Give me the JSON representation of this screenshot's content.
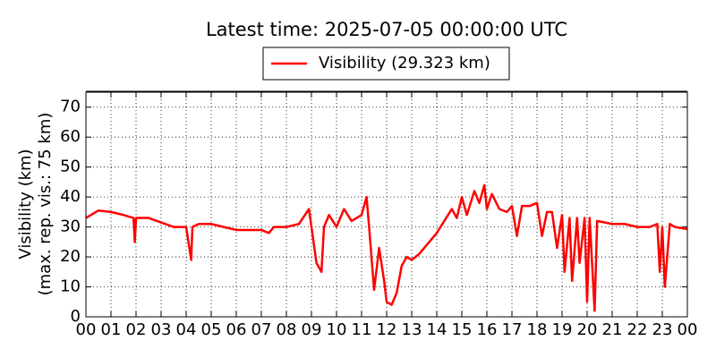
{
  "chart_data": {
    "type": "line",
    "title": "Latest time: 2025-07-05 00:00:00 UTC",
    "ylabel": [
      "Visibility (km)",
      "(max. rep. vis.: 75 km)"
    ],
    "xlim": [
      0,
      24
    ],
    "ylim": [
      0,
      75
    ],
    "yticks": [
      0,
      10,
      20,
      30,
      40,
      50,
      60,
      70
    ],
    "xticks": [
      {
        "value": 0,
        "label": "00"
      },
      {
        "value": 1,
        "label": "01"
      },
      {
        "value": 2,
        "label": "02"
      },
      {
        "value": 3,
        "label": "03"
      },
      {
        "value": 4,
        "label": "04"
      },
      {
        "value": 5,
        "label": "05"
      },
      {
        "value": 6,
        "label": "06"
      },
      {
        "value": 7,
        "label": "07"
      },
      {
        "value": 8,
        "label": "08"
      },
      {
        "value": 9,
        "label": "09"
      },
      {
        "value": 10,
        "label": "10"
      },
      {
        "value": 11,
        "label": "11"
      },
      {
        "value": 12,
        "label": "12"
      },
      {
        "value": 13,
        "label": "13"
      },
      {
        "value": 14,
        "label": "14"
      },
      {
        "value": 15,
        "label": "15"
      },
      {
        "value": 16,
        "label": "16"
      },
      {
        "value": 17,
        "label": "17"
      },
      {
        "value": 18,
        "label": "18"
      },
      {
        "value": 19,
        "label": "19"
      },
      {
        "value": 20,
        "label": "20"
      },
      {
        "value": 21,
        "label": "21"
      },
      {
        "value": 22,
        "label": "22"
      },
      {
        "value": 23,
        "label": "23"
      },
      {
        "value": 24,
        "label": "00"
      }
    ],
    "grid": true,
    "legend": "upper center",
    "x": [
      0,
      0.5,
      1,
      1.5,
      1.9,
      1.95,
      2,
      2.5,
      3,
      3.5,
      4,
      4.2,
      4.25,
      4.5,
      5,
      5.5,
      6,
      6.5,
      7,
      7.3,
      7.5,
      8,
      8.5,
      8.9,
      9,
      9.2,
      9.4,
      9.5,
      9.7,
      10,
      10.3,
      10.6,
      11,
      11.2,
      11.3,
      11.5,
      11.7,
      11.9,
      12,
      12.2,
      12.4,
      12.6,
      12.8,
      13,
      13.3,
      13.6,
      14,
      14.3,
      14.6,
      14.8,
      15,
      15.2,
      15.5,
      15.7,
      15.9,
      16,
      16.2,
      16.5,
      16.8,
      17,
      17.2,
      17.4,
      17.7,
      18,
      18.2,
      18.4,
      18.6,
      18.8,
      19,
      19.1,
      19.3,
      19.4,
      19.6,
      19.7,
      19.9,
      20,
      20.1,
      20.3,
      20.4,
      21,
      21.5,
      22,
      22.5,
      22.8,
      22.9,
      23,
      23.1,
      23.3,
      23.5,
      24
    ],
    "series": [
      {
        "name": "Visibility (29.323 km)",
        "color": "#ff0000",
        "values": [
          33,
          35.5,
          35,
          34,
          33,
          25,
          33,
          33,
          31.5,
          30,
          30,
          19,
          30,
          31,
          31,
          30,
          29,
          29,
          29,
          28,
          30,
          30,
          31,
          36,
          30,
          18,
          15,
          30,
          34,
          30,
          36,
          32,
          34,
          40,
          30,
          9,
          23,
          12,
          5,
          4,
          8,
          17,
          20,
          19,
          21,
          24,
          28,
          32,
          36,
          33,
          40,
          34,
          42,
          38,
          44,
          36,
          41,
          36,
          35,
          37,
          27,
          37,
          37,
          38,
          27,
          35,
          35,
          23,
          34,
          15,
          33,
          12,
          33,
          18,
          33,
          5,
          33,
          2,
          32,
          31,
          31,
          30,
          30,
          31,
          15,
          30,
          10,
          31,
          30,
          29.3
        ]
      }
    ]
  }
}
